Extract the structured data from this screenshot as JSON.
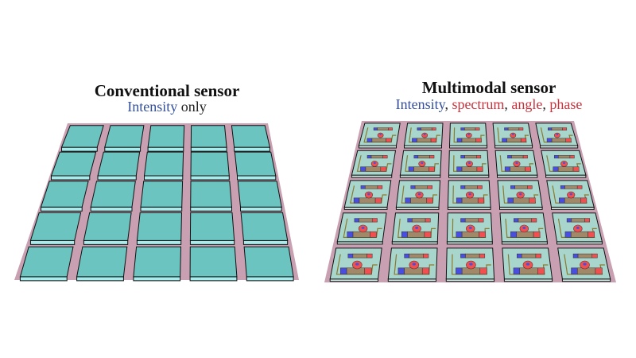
{
  "left_panel": {
    "title": "Conventional sensor",
    "subtitle_highlight": "Intensity",
    "subtitle_rest": " only",
    "grid": {
      "rows": 5,
      "cols": 5
    }
  },
  "right_panel": {
    "title": "Multimodal sensor",
    "subtitle": {
      "intensity": "Intensity",
      "sep1": ", ",
      "spectrum": "spectrum",
      "sep2": ", ",
      "angle": "angle",
      "sep3": ", ",
      "phase": "phase"
    },
    "grid": {
      "rows": 5,
      "cols": 5
    }
  },
  "colors": {
    "tile_top": "#6cc4c0",
    "tile_side": "#a6ecec",
    "substrate": "#c9a0b2",
    "multimodal_tile": "#a9d6cc",
    "intensity_text": "#34509c",
    "modality_text": "#c8323c",
    "component_blue": "#4a4ee0",
    "component_red": "#f05050",
    "component_body": "#a08868"
  }
}
